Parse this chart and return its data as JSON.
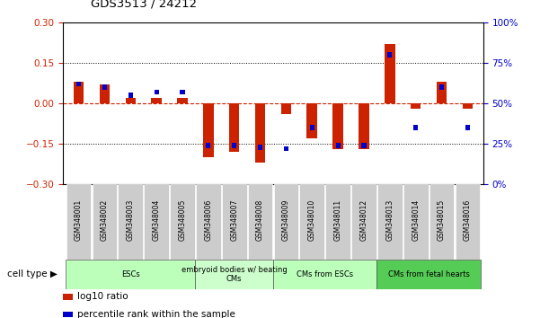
{
  "title": "GDS3513 / 24212",
  "samples": [
    "GSM348001",
    "GSM348002",
    "GSM348003",
    "GSM348004",
    "GSM348005",
    "GSM348006",
    "GSM348007",
    "GSM348008",
    "GSM348009",
    "GSM348010",
    "GSM348011",
    "GSM348012",
    "GSM348013",
    "GSM348014",
    "GSM348015",
    "GSM348016"
  ],
  "log10_ratio": [
    0.08,
    0.07,
    0.02,
    0.02,
    0.02,
    -0.2,
    -0.18,
    -0.22,
    -0.04,
    -0.13,
    -0.17,
    -0.17,
    0.22,
    -0.02,
    0.08,
    -0.02
  ],
  "percentile_rank": [
    62,
    60,
    55,
    57,
    57,
    24,
    24,
    23,
    22,
    35,
    24,
    24,
    80,
    35,
    60,
    35
  ],
  "cell_type_groups": [
    {
      "label": "ESCs",
      "start": 0,
      "end": 4,
      "color": "#bbffbb"
    },
    {
      "label": "embryoid bodies w/ beating\nCMs",
      "start": 5,
      "end": 7,
      "color": "#ccffcc"
    },
    {
      "label": "CMs from ESCs",
      "start": 8,
      "end": 11,
      "color": "#bbffbb"
    },
    {
      "label": "CMs from fetal hearts",
      "start": 12,
      "end": 15,
      "color": "#55cc55"
    }
  ],
  "ylim_left": [
    -0.3,
    0.3
  ],
  "ylim_right": [
    0,
    100
  ],
  "yticks_left": [
    -0.3,
    -0.15,
    0,
    0.15,
    0.3
  ],
  "yticks_right": [
    0,
    25,
    50,
    75,
    100
  ],
  "bar_color_red": "#cc2200",
  "bar_color_blue": "#0000cc",
  "zero_line_color": "#cc2200",
  "legend_red_label": "log10 ratio",
  "legend_blue_label": "percentile rank within the sample",
  "cell_type_label": "cell type",
  "sample_box_color": "#cccccc",
  "bar_width": 0.4
}
